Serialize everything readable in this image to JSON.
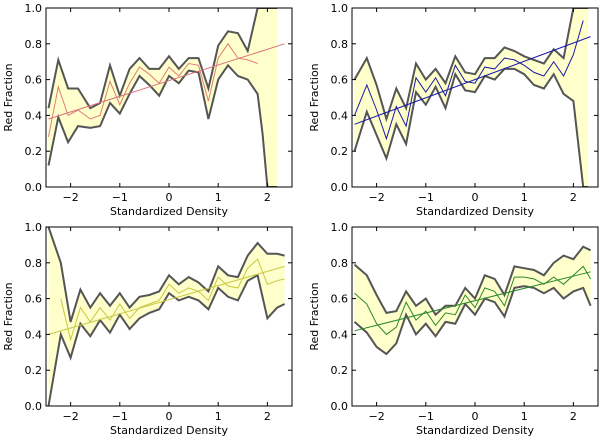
{
  "chart_data": [
    {
      "type": "area",
      "xlabel": "Standardized Density",
      "ylabel": "Red Fraction",
      "xlim": [
        -2.5,
        2.5
      ],
      "ylim": [
        0.0,
        1.0
      ],
      "xticks": [
        -2,
        -1,
        0,
        1,
        2
      ],
      "yticks": [
        0.0,
        0.2,
        0.4,
        0.6,
        0.8,
        1.0
      ],
      "xtick_labels": [
        "−2",
        "−1",
        "0",
        "1",
        "2"
      ],
      "ytick_labels": [
        "0.0",
        "0.2",
        "0.4",
        "0.6",
        "0.8",
        "1.0"
      ],
      "colors": {
        "band": "#ffffcc",
        "band_edge": "#555555",
        "line": "#e17c7c",
        "fit": "#d9737a"
      },
      "series": [
        {
          "name": "upper",
          "x": [
            -2.45,
            -2.25,
            -2.05,
            -1.85,
            -1.6,
            -1.4,
            -1.2,
            -1.0,
            -0.8,
            -0.6,
            -0.4,
            -0.2,
            0.0,
            0.2,
            0.4,
            0.6,
            0.8,
            1.0,
            1.2,
            1.4,
            1.6,
            1.8,
            2.0,
            2.2
          ],
          "values": [
            0.44,
            0.71,
            0.55,
            0.55,
            0.44,
            0.47,
            0.68,
            0.51,
            0.66,
            0.72,
            0.66,
            0.66,
            0.73,
            0.66,
            0.72,
            0.72,
            0.55,
            0.79,
            0.87,
            0.86,
            0.76,
            1.0,
            1.0,
            1.0
          ]
        },
        {
          "name": "mean",
          "x": [
            -2.45,
            -2.25,
            -2.05,
            -1.85,
            -1.6,
            -1.4,
            -1.2,
            -1.0,
            -0.8,
            -0.6,
            -0.4,
            -0.2,
            0.0,
            0.2,
            0.4,
            0.6,
            0.8,
            1.0,
            1.2,
            1.4,
            1.6,
            1.8
          ],
          "values": [
            0.28,
            0.56,
            0.4,
            0.43,
            0.38,
            0.4,
            0.59,
            0.46,
            0.58,
            0.67,
            0.63,
            0.58,
            0.67,
            0.62,
            0.69,
            0.68,
            0.48,
            0.72,
            0.8,
            0.72,
            0.71,
            0.69
          ]
        },
        {
          "name": "lower",
          "x": [
            -2.45,
            -2.25,
            -2.05,
            -1.85,
            -1.6,
            -1.4,
            -1.2,
            -1.0,
            -0.8,
            -0.6,
            -0.4,
            -0.2,
            0.0,
            0.2,
            0.4,
            0.6,
            0.8,
            1.0,
            1.2,
            1.4,
            1.6,
            1.8,
            1.9,
            2.0,
            2.2
          ],
          "values": [
            0.12,
            0.39,
            0.25,
            0.34,
            0.33,
            0.34,
            0.47,
            0.41,
            0.52,
            0.62,
            0.57,
            0.51,
            0.62,
            0.58,
            0.65,
            0.64,
            0.38,
            0.6,
            0.68,
            0.62,
            0.6,
            0.52,
            0.3,
            0.0,
            0.0
          ]
        },
        {
          "name": "fit",
          "x": [
            -2.45,
            2.35
          ],
          "values": [
            0.38,
            0.8
          ]
        }
      ]
    },
    {
      "type": "area",
      "xlabel": "Standardized Density",
      "ylabel": "Red Fraction",
      "xlim": [
        -2.5,
        2.5
      ],
      "ylim": [
        0.0,
        1.0
      ],
      "xticks": [
        -2,
        -1,
        0,
        1,
        2
      ],
      "yticks": [
        0.0,
        0.2,
        0.4,
        0.6,
        0.8,
        1.0
      ],
      "xtick_labels": [
        "−2",
        "−1",
        "0",
        "1",
        "2"
      ],
      "ytick_labels": [
        "0.0",
        "0.2",
        "0.4",
        "0.6",
        "0.8",
        "1.0"
      ],
      "colors": {
        "band": "#ffffcc",
        "band_edge": "#555555",
        "line": "#1a1aa8",
        "fit": "#1a1aa8"
      },
      "series": [
        {
          "name": "upper",
          "x": [
            -2.45,
            -2.2,
            -2.0,
            -1.8,
            -1.6,
            -1.4,
            -1.2,
            -1.0,
            -0.8,
            -0.6,
            -0.4,
            -0.2,
            0.0,
            0.2,
            0.4,
            0.6,
            0.8,
            1.0,
            1.2,
            1.4,
            1.6,
            1.8,
            2.0,
            2.2,
            2.3
          ],
          "values": [
            0.6,
            0.72,
            0.57,
            0.38,
            0.55,
            0.44,
            0.69,
            0.6,
            0.66,
            0.58,
            0.73,
            0.64,
            0.63,
            0.72,
            0.72,
            0.78,
            0.76,
            0.73,
            0.71,
            0.69,
            0.77,
            0.72,
            1.0,
            1.0,
            1.0
          ]
        },
        {
          "name": "mean",
          "x": [
            -2.45,
            -2.2,
            -2.0,
            -1.8,
            -1.6,
            -1.4,
            -1.2,
            -1.0,
            -0.8,
            -0.6,
            -0.4,
            -0.2,
            0.0,
            0.2,
            0.4,
            0.6,
            0.8,
            1.0,
            1.2,
            1.4,
            1.6,
            1.8,
            2.0,
            2.2
          ],
          "values": [
            0.4,
            0.57,
            0.43,
            0.27,
            0.45,
            0.34,
            0.61,
            0.53,
            0.61,
            0.51,
            0.68,
            0.59,
            0.58,
            0.67,
            0.66,
            0.72,
            0.71,
            0.68,
            0.64,
            0.62,
            0.7,
            0.62,
            0.74,
            0.93
          ]
        },
        {
          "name": "lower",
          "x": [
            -2.45,
            -2.2,
            -2.0,
            -1.8,
            -1.6,
            -1.4,
            -1.2,
            -1.0,
            -0.8,
            -0.6,
            -0.4,
            -0.2,
            0.0,
            0.2,
            0.4,
            0.6,
            0.8,
            1.0,
            1.2,
            1.4,
            1.6,
            1.8,
            2.0,
            2.2,
            2.3
          ],
          "values": [
            0.2,
            0.42,
            0.29,
            0.16,
            0.35,
            0.24,
            0.53,
            0.46,
            0.56,
            0.44,
            0.63,
            0.54,
            0.53,
            0.62,
            0.6,
            0.66,
            0.66,
            0.63,
            0.57,
            0.55,
            0.63,
            0.52,
            0.48,
            0.0,
            0.0
          ]
        },
        {
          "name": "fit",
          "x": [
            -2.45,
            2.35
          ],
          "values": [
            0.35,
            0.84
          ]
        }
      ]
    },
    {
      "type": "area",
      "xlabel": "Standardized Density",
      "ylabel": "Red Fraction",
      "xlim": [
        -2.5,
        2.5
      ],
      "ylim": [
        0.0,
        1.0
      ],
      "xticks": [
        -2,
        -1,
        0,
        1,
        2
      ],
      "yticks": [
        0.0,
        0.2,
        0.4,
        0.6,
        0.8,
        1.0
      ],
      "xtick_labels": [
        "−2",
        "−1",
        "0",
        "1",
        "2"
      ],
      "ytick_labels": [
        "0.0",
        "0.2",
        "0.4",
        "0.6",
        "0.8",
        "1.0"
      ],
      "colors": {
        "band": "#ffffcc",
        "band_edge": "#555555",
        "line": "#c8c840",
        "fit": "#c8c840"
      },
      "series": [
        {
          "name": "upper",
          "x": [
            -2.45,
            -2.2,
            -2.0,
            -1.8,
            -1.6,
            -1.4,
            -1.2,
            -1.0,
            -0.8,
            -0.6,
            -0.4,
            -0.2,
            0.0,
            0.2,
            0.4,
            0.6,
            0.8,
            1.0,
            1.2,
            1.4,
            1.6,
            1.8,
            2.0,
            2.2,
            2.35
          ],
          "values": [
            1.0,
            0.8,
            0.47,
            0.65,
            0.55,
            0.63,
            0.56,
            0.63,
            0.55,
            0.61,
            0.62,
            0.64,
            0.73,
            0.68,
            0.72,
            0.69,
            0.64,
            0.78,
            0.73,
            0.72,
            0.84,
            0.91,
            0.85,
            0.85,
            0.84
          ]
        },
        {
          "name": "mean",
          "x": [
            -2.2,
            -2.0,
            -1.8,
            -1.6,
            -1.4,
            -1.2,
            -1.0,
            -0.8,
            -0.6,
            -0.4,
            -0.2,
            0.0,
            0.2,
            0.4,
            0.6,
            0.8,
            1.0,
            1.2,
            1.4,
            1.6,
            1.8,
            2.0,
            2.2,
            2.35
          ],
          "values": [
            0.6,
            0.37,
            0.55,
            0.47,
            0.55,
            0.48,
            0.57,
            0.49,
            0.55,
            0.57,
            0.59,
            0.68,
            0.63,
            0.66,
            0.64,
            0.59,
            0.72,
            0.67,
            0.66,
            0.77,
            0.82,
            0.68,
            0.7,
            0.71
          ]
        },
        {
          "name": "lower",
          "x": [
            -2.45,
            -2.2,
            -2.0,
            -1.8,
            -1.6,
            -1.4,
            -1.2,
            -1.0,
            -0.8,
            -0.6,
            -0.4,
            -0.2,
            0.0,
            0.2,
            0.4,
            0.6,
            0.8,
            1.0,
            1.2,
            1.4,
            1.6,
            1.8,
            2.0,
            2.2,
            2.35
          ],
          "values": [
            0.0,
            0.4,
            0.27,
            0.46,
            0.39,
            0.48,
            0.41,
            0.51,
            0.43,
            0.49,
            0.52,
            0.54,
            0.63,
            0.59,
            0.61,
            0.59,
            0.54,
            0.66,
            0.61,
            0.59,
            0.7,
            0.73,
            0.49,
            0.55,
            0.57
          ]
        },
        {
          "name": "fit",
          "x": [
            -2.45,
            2.35
          ],
          "values": [
            0.4,
            0.78
          ]
        }
      ]
    },
    {
      "type": "area",
      "xlabel": "Standardized Density",
      "ylabel": "Red Fraction",
      "xlim": [
        -2.5,
        2.5
      ],
      "ylim": [
        0.0,
        1.0
      ],
      "xticks": [
        -2,
        -1,
        0,
        1,
        2
      ],
      "yticks": [
        0.0,
        0.2,
        0.4,
        0.6,
        0.8,
        1.0
      ],
      "xtick_labels": [
        "−2",
        "−1",
        "0",
        "1",
        "2"
      ],
      "ytick_labels": [
        "0.0",
        "0.2",
        "0.4",
        "0.6",
        "0.8",
        "1.0"
      ],
      "colors": {
        "band": "#ffffcc",
        "band_edge": "#555555",
        "line": "#2a8a2a",
        "fit": "#2a8a2a"
      },
      "series": [
        {
          "name": "upper",
          "x": [
            -2.45,
            -2.2,
            -2.0,
            -1.8,
            -1.6,
            -1.4,
            -1.2,
            -1.0,
            -0.8,
            -0.6,
            -0.4,
            -0.2,
            0.0,
            0.2,
            0.4,
            0.6,
            0.8,
            1.0,
            1.2,
            1.4,
            1.6,
            1.8,
            2.0,
            2.2,
            2.35
          ],
          "values": [
            0.79,
            0.73,
            0.62,
            0.52,
            0.53,
            0.64,
            0.56,
            0.6,
            0.51,
            0.56,
            0.56,
            0.66,
            0.6,
            0.73,
            0.71,
            0.62,
            0.78,
            0.77,
            0.76,
            0.73,
            0.8,
            0.84,
            0.82,
            0.89,
            0.87
          ]
        },
        {
          "name": "mean",
          "x": [
            -2.45,
            -2.2,
            -2.0,
            -1.8,
            -1.6,
            -1.4,
            -1.2,
            -1.0,
            -0.8,
            -0.6,
            -0.4,
            -0.2,
            0.0,
            0.2,
            0.4,
            0.6,
            0.8,
            1.0,
            1.2,
            1.4,
            1.6,
            1.8,
            2.0,
            2.2,
            2.35
          ],
          "values": [
            0.63,
            0.57,
            0.46,
            0.4,
            0.44,
            0.58,
            0.48,
            0.53,
            0.45,
            0.52,
            0.51,
            0.62,
            0.55,
            0.66,
            0.64,
            0.56,
            0.72,
            0.72,
            0.71,
            0.68,
            0.72,
            0.68,
            0.73,
            0.78,
            0.71
          ]
        },
        {
          "name": "lower",
          "x": [
            -2.45,
            -2.2,
            -2.0,
            -1.8,
            -1.6,
            -1.4,
            -1.2,
            -1.0,
            -0.8,
            -0.6,
            -0.4,
            -0.2,
            0.0,
            0.2,
            0.4,
            0.6,
            0.8,
            1.0,
            1.2,
            1.4,
            1.6,
            1.8,
            2.0,
            2.2,
            2.35
          ],
          "values": [
            0.47,
            0.41,
            0.33,
            0.29,
            0.35,
            0.51,
            0.4,
            0.46,
            0.39,
            0.47,
            0.46,
            0.57,
            0.51,
            0.6,
            0.58,
            0.5,
            0.66,
            0.67,
            0.66,
            0.63,
            0.66,
            0.6,
            0.64,
            0.66,
            0.56
          ]
        },
        {
          "name": "fit",
          "x": [
            -2.45,
            2.35
          ],
          "values": [
            0.42,
            0.75
          ]
        }
      ]
    }
  ]
}
